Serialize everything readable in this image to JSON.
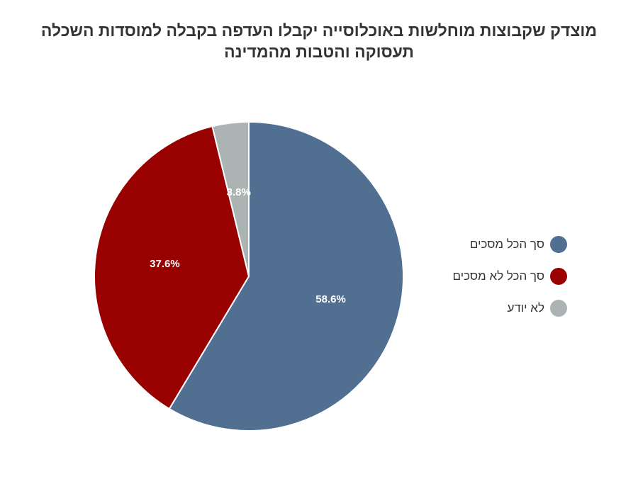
{
  "chart_data": {
    "type": "pie",
    "title_lines": [
      "מוצדק שקבוצות מוחלשות באוכלוסייה יקבלו העדפה בקבלה למוסדות השכלה",
      "תעסוקה והטבות מהמדינה"
    ],
    "slices": [
      {
        "label": "סך הכל מסכים",
        "value": 58.6,
        "value_label": "58.6%",
        "color": "#516f91"
      },
      {
        "label": "סך הכל לא מסכים",
        "value": 37.6,
        "value_label": "37.6%",
        "color": "#990000"
      },
      {
        "label": "לא יודע",
        "value": 3.8,
        "value_label": "3.8%",
        "color": "#abb3b3"
      }
    ],
    "legend_position": "right"
  }
}
